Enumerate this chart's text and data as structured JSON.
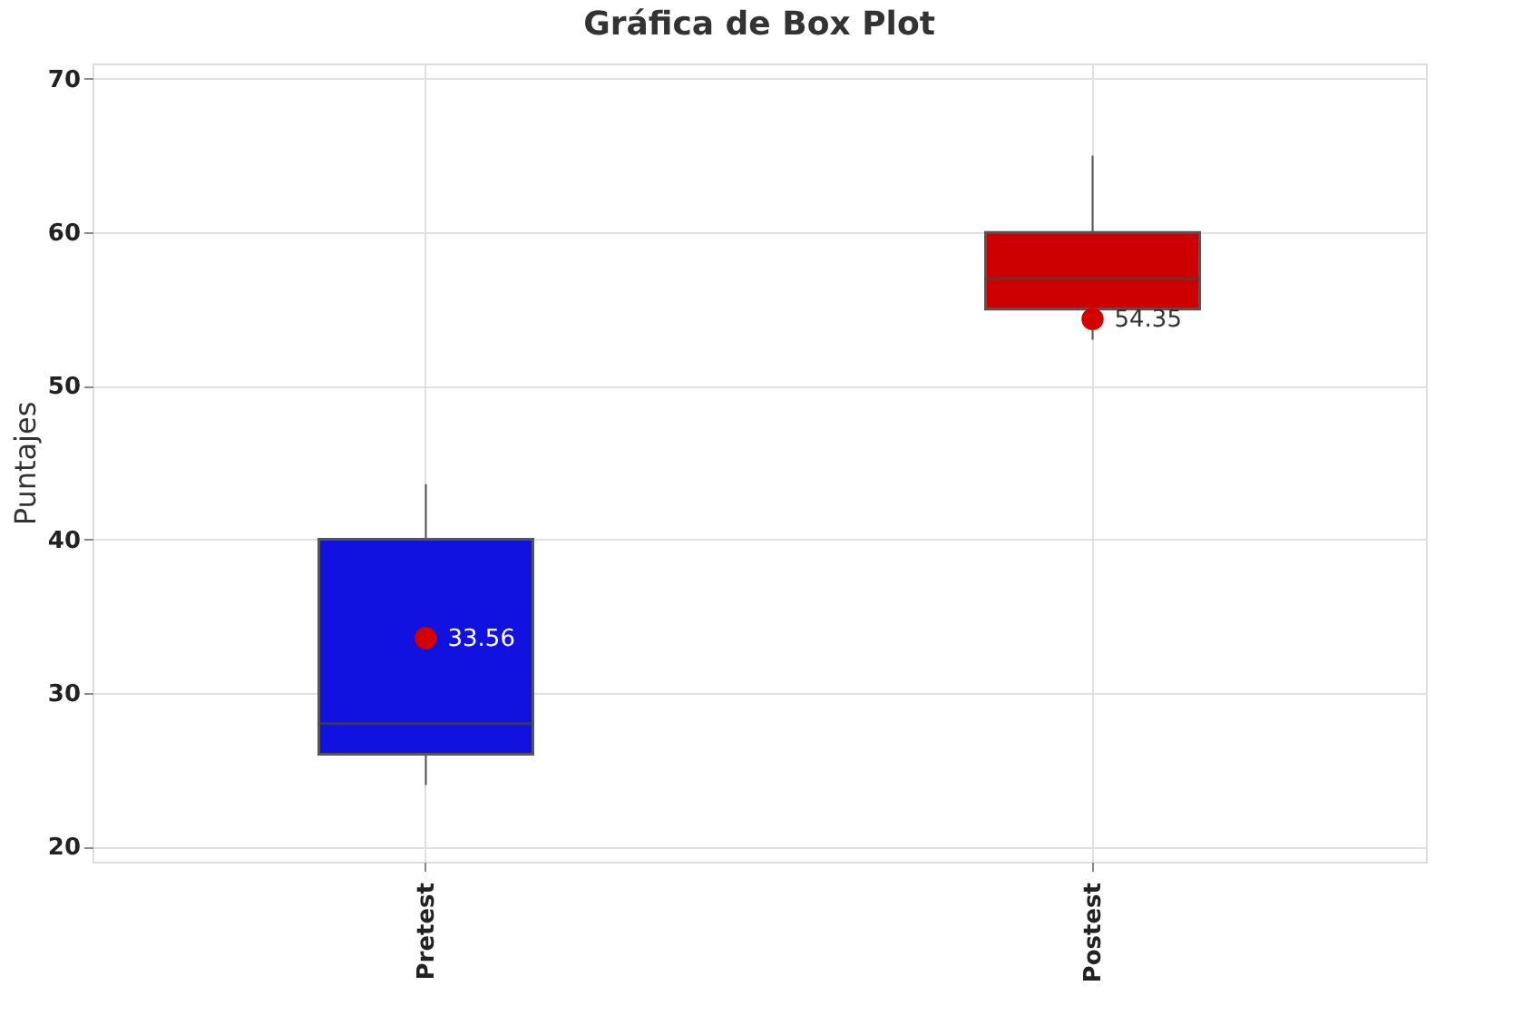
{
  "chart_data": {
    "type": "box",
    "title": "Gráfica de Box Plot",
    "ylabel": "Puntajes",
    "categories": [
      "Pretest",
      "Postest"
    ],
    "colors": [
      "#1212e0",
      "#cc0000"
    ],
    "boxes": [
      {
        "low": 24,
        "q1": 26,
        "median": 28,
        "q3": 40,
        "high": 43.6,
        "mean": 33.56
      },
      {
        "low": 53,
        "q1": 55,
        "median": 57,
        "q3": 60,
        "high": 65,
        "mean": 54.35
      }
    ],
    "annotations": [
      {
        "text": "33.56",
        "x": "Pretest",
        "y": 33.56
      },
      {
        "text": "54.35",
        "x": "Postest",
        "y": 54.35
      }
    ],
    "ylim": [
      19,
      71
    ],
    "yticks": [
      20,
      30,
      40,
      50,
      60,
      70
    ],
    "grid": true
  }
}
